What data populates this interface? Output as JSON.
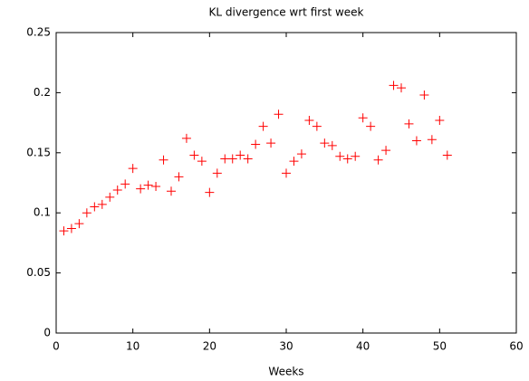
{
  "chart_data": {
    "type": "scatter",
    "title": "KL divergence wrt first week",
    "x_label": "Weeks",
    "x": [
      1,
      2,
      3,
      4,
      5,
      6,
      7,
      8,
      9,
      10,
      11,
      12,
      13,
      14,
      15,
      16,
      17,
      18,
      19,
      20,
      21,
      22,
      23,
      24,
      25,
      26,
      27,
      28,
      29,
      30,
      31,
      32,
      33,
      34,
      35,
      36,
      37,
      38,
      39,
      40,
      41,
      42,
      43,
      44,
      45,
      46,
      47,
      48,
      49,
      50,
      51
    ],
    "values": [
      0.085,
      0.087,
      0.091,
      0.1,
      0.105,
      0.107,
      0.113,
      0.119,
      0.124,
      0.137,
      0.12,
      0.123,
      0.122,
      0.144,
      0.118,
      0.13,
      0.162,
      0.148,
      0.143,
      0.117,
      0.133,
      0.145,
      0.145,
      0.148,
      0.145,
      0.157,
      0.172,
      0.158,
      0.182,
      0.133,
      0.143,
      0.149,
      0.177,
      0.172,
      0.158,
      0.156,
      0.147,
      0.145,
      0.147,
      0.179,
      0.172,
      0.144,
      0.152,
      0.206,
      0.204,
      0.174,
      0.16,
      0.198,
      0.161,
      0.177,
      0.148
    ],
    "color": "#ff0000",
    "marker": "+",
    "xlim": [
      0,
      60
    ],
    "xticks": [
      0,
      10,
      20,
      30,
      40,
      50,
      60
    ],
    "ylim": [
      0,
      0.25
    ],
    "yticks": [
      0,
      0.05,
      0.1,
      0.15,
      0.2,
      0.25
    ],
    "grid": false
  }
}
